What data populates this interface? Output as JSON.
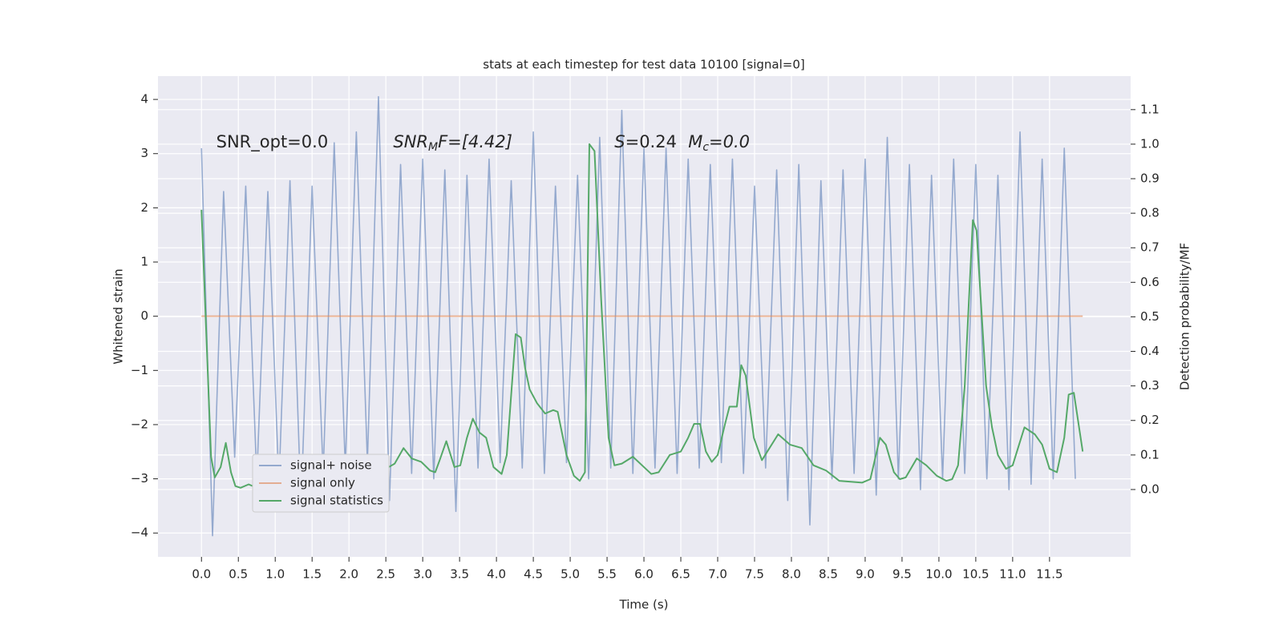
{
  "chart_data": {
    "type": "line",
    "title": "stats at each timestep for test data 10100 [signal=0]",
    "x_label": "Time (s)",
    "y_label": "Whitened strain",
    "y2_label": "Detection probability/MF",
    "annotations": [
      {
        "text": "SNR_opt=0.0",
        "x": 0.2,
        "y": 3.2
      },
      {
        "base": "SNR",
        "sub": "M",
        "rest": "F=[4.42]",
        "x": 2.6,
        "y": 3.2
      },
      {
        "base": "S",
        "rest": "=0.24",
        "x": 5.6,
        "y": 3.2
      },
      {
        "base": "M",
        "sub": "c",
        "rest": "=0.0",
        "x": 6.6,
        "y": 3.2
      }
    ],
    "xlim": [
      -0.59,
      12.6
    ],
    "ylim": [
      -4.44,
      4.43
    ],
    "y2lim": [
      -0.195,
      1.197
    ],
    "xticks": [
      {
        "value": 0,
        "label": "0.0"
      },
      {
        "value": 0.5,
        "label": "0.5"
      },
      {
        "value": 1,
        "label": "1.0"
      },
      {
        "value": 1.5,
        "label": "1.5"
      },
      {
        "value": 2,
        "label": "2.0"
      },
      {
        "value": 2.5,
        "label": "2.5"
      },
      {
        "value": 3,
        "label": "3.0"
      },
      {
        "value": 3.5,
        "label": "3.5"
      },
      {
        "value": 4,
        "label": "4.0"
      },
      {
        "value": 4.5,
        "label": "4.5"
      },
      {
        "value": 5,
        "label": "5.0"
      },
      {
        "value": 5.5,
        "label": "5.5"
      },
      {
        "value": 6,
        "label": "6.0"
      },
      {
        "value": 6.5,
        "label": "6.5"
      },
      {
        "value": 7,
        "label": "7.0"
      },
      {
        "value": 7.5,
        "label": "7.5"
      },
      {
        "value": 8,
        "label": "8.0"
      },
      {
        "value": 8.5,
        "label": "8.5"
      },
      {
        "value": 9,
        "label": "9.0"
      },
      {
        "value": 9.5,
        "label": "9.5"
      },
      {
        "value": 10,
        "label": "10.0"
      },
      {
        "value": 10.5,
        "label": "10.5"
      },
      {
        "value": 11,
        "label": "11.0"
      },
      {
        "value": 11.5,
        "label": "11.5"
      }
    ],
    "yticks": [
      {
        "value": -4,
        "label": "−4"
      },
      {
        "value": -3,
        "label": "−3"
      },
      {
        "value": -2,
        "label": "−2"
      },
      {
        "value": -1,
        "label": "−1"
      },
      0,
      1,
      2,
      3,
      4
    ],
    "y2ticks": [
      {
        "value": 0,
        "label": "0.0"
      },
      {
        "value": 0.1,
        "label": "0.1"
      },
      {
        "value": 0.2,
        "label": "0.2"
      },
      {
        "value": 0.3,
        "label": "0.3"
      },
      {
        "value": 0.4,
        "label": "0.4"
      },
      {
        "value": 0.5,
        "label": "0.5"
      },
      {
        "value": 0.6,
        "label": "0.6"
      },
      {
        "value": 0.7,
        "label": "0.7"
      },
      {
        "value": 0.8,
        "label": "0.8"
      },
      {
        "value": 0.9,
        "label": "0.9"
      },
      {
        "value": 1.0,
        "label": "1.0"
      },
      {
        "value": 1.1,
        "label": "1.1"
      }
    ],
    "grid": true,
    "legend": "lower left",
    "series": [
      {
        "name": "signal+ noise",
        "color": "#4c72b0",
        "x": [
          0,
          0.15,
          0.3,
          0.45,
          0.6,
          0.75,
          0.9,
          1.05,
          1.2,
          1.35,
          1.5,
          1.65,
          1.8,
          1.95,
          2.1,
          2.25,
          2.4,
          2.55,
          2.7,
          2.85,
          3.0,
          3.15,
          3.3,
          3.45,
          3.6,
          3.75,
          3.9,
          4.05,
          4.2,
          4.35,
          4.5,
          4.65,
          4.8,
          4.95,
          5.1,
          5.25,
          5.4,
          5.55,
          5.7,
          5.85,
          6.0,
          6.15,
          6.3,
          6.45,
          6.6,
          6.75,
          6.9,
          7.05,
          7.2,
          7.35,
          7.5,
          7.65,
          7.8,
          7.95,
          8.1,
          8.25,
          8.4,
          8.55,
          8.7,
          8.85,
          9.0,
          9.15,
          9.3,
          9.45,
          9.6,
          9.75,
          9.9,
          10.05,
          10.2,
          10.35,
          10.5,
          10.65,
          10.8,
          10.95,
          11.1,
          11.25,
          11.4,
          11.55,
          11.7,
          11.85
        ],
        "values": [
          3.1,
          -4.05,
          2.3,
          -2.6,
          2.4,
          -3.0,
          2.3,
          -3.1,
          2.5,
          -3.5,
          2.4,
          -2.9,
          3.2,
          -2.8,
          3.4,
          -2.7,
          4.05,
          -3.4,
          2.8,
          -2.9,
          2.9,
          -3.0,
          2.7,
          -3.6,
          2.6,
          -2.8,
          2.9,
          -2.7,
          2.5,
          -2.8,
          3.4,
          -2.9,
          2.4,
          -2.7,
          2.6,
          -3.0,
          3.3,
          -2.8,
          3.8,
          -2.9,
          3.1,
          -2.8,
          3.1,
          -2.9,
          2.9,
          -2.8,
          2.8,
          -2.7,
          2.9,
          -2.9,
          2.4,
          -2.8,
          2.7,
          -3.4,
          2.8,
          -3.85,
          2.5,
          -3.0,
          2.7,
          -2.9,
          2.9,
          -3.3,
          3.3,
          -3.0,
          2.8,
          -3.2,
          2.6,
          -3.0,
          2.9,
          -2.9,
          2.8,
          -3.0,
          2.6,
          -3.2,
          3.4,
          -3.1,
          2.9,
          -3.0,
          3.1,
          -3.0
        ]
      },
      {
        "name": "signal only",
        "color": "#dd8452",
        "x": [
          0,
          11.95
        ],
        "values": [
          0,
          0
        ]
      },
      {
        "name": "signal statistics",
        "color": "#55a868",
        "axis": "y2",
        "x": [
          0,
          0.13,
          0.18,
          0.26,
          0.33,
          0.4,
          0.46,
          0.53,
          0.64,
          0.75,
          0.86,
          0.95,
          1.08,
          1.15,
          1.25,
          1.38,
          1.46,
          1.58,
          1.75,
          1.84,
          1.97,
          2.05,
          2.16,
          2.29,
          2.41,
          2.54,
          2.62,
          2.74,
          2.85,
          2.98,
          3.1,
          3.17,
          3.23,
          3.32,
          3.43,
          3.51,
          3.6,
          3.68,
          3.77,
          3.86,
          3.96,
          4.07,
          4.14,
          4.26,
          4.33,
          4.39,
          4.45,
          4.55,
          4.66,
          4.77,
          4.83,
          4.95,
          5.05,
          5.13,
          5.2,
          5.26,
          5.33,
          5.42,
          5.52,
          5.6,
          5.7,
          5.85,
          6.0,
          6.1,
          6.2,
          6.35,
          6.5,
          6.6,
          6.68,
          6.76,
          6.84,
          6.92,
          7.0,
          7.1,
          7.16,
          7.26,
          7.32,
          7.38,
          7.49,
          7.6,
          7.82,
          7.98,
          8.14,
          8.3,
          8.47,
          8.65,
          8.96,
          9.07,
          9.2,
          9.28,
          9.39,
          9.47,
          9.55,
          9.7,
          9.83,
          9.97,
          10.1,
          10.18,
          10.26,
          10.35,
          10.46,
          10.51,
          10.64,
          10.72,
          10.8,
          10.91,
          11.0,
          11.16,
          11.3,
          11.4,
          11.5,
          11.6,
          11.7,
          11.76,
          11.83,
          11.95
        ],
        "values": [
          0.81,
          0.095,
          0.035,
          0.065,
          0.135,
          0.05,
          0.01,
          0.005,
          0.015,
          0.005,
          0.01,
          0.025,
          0.015,
          0.03,
          0.05,
          0.02,
          0.02,
          0.035,
          0.033,
          0.04,
          0.025,
          0.03,
          0.05,
          0.05,
          0.075,
          0.065,
          0.075,
          0.12,
          0.09,
          0.08,
          0.055,
          0.05,
          0.085,
          0.14,
          0.065,
          0.07,
          0.15,
          0.205,
          0.165,
          0.15,
          0.065,
          0.045,
          0.1,
          0.45,
          0.44,
          0.35,
          0.29,
          0.25,
          0.22,
          0.23,
          0.225,
          0.1,
          0.04,
          0.025,
          0.05,
          1.0,
          0.98,
          0.55,
          0.15,
          0.07,
          0.075,
          0.095,
          0.065,
          0.045,
          0.05,
          0.1,
          0.11,
          0.15,
          0.19,
          0.19,
          0.11,
          0.08,
          0.1,
          0.19,
          0.24,
          0.24,
          0.36,
          0.33,
          0.15,
          0.085,
          0.16,
          0.13,
          0.12,
          0.07,
          0.055,
          0.025,
          0.02,
          0.03,
          0.15,
          0.13,
          0.05,
          0.03,
          0.035,
          0.09,
          0.07,
          0.04,
          0.025,
          0.03,
          0.07,
          0.3,
          0.78,
          0.75,
          0.3,
          0.18,
          0.1,
          0.06,
          0.07,
          0.18,
          0.16,
          0.13,
          0.06,
          0.05,
          0.15,
          0.275,
          0.28,
          0.11
        ]
      }
    ]
  }
}
